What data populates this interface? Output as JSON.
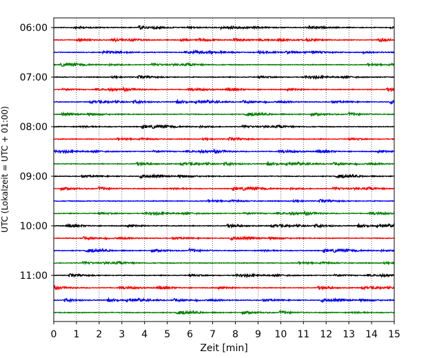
{
  "chart_data": {
    "type": "line",
    "title": "",
    "xlabel": "Zeit  [min]",
    "ylabel": "UTC (Lokalzeit = UTC + 01:00)",
    "xlim": [
      0,
      15
    ],
    "x_ticks": [
      "0",
      "1",
      "2",
      "3",
      "4",
      "5",
      "6",
      "7",
      "8",
      "9",
      "10",
      "11",
      "12",
      "13",
      "14",
      "15"
    ],
    "y_ticks": [
      "06:00",
      "07:00",
      "08:00",
      "09:00",
      "10:00",
      "11:00"
    ],
    "vertical_grid": "dotted at each minute",
    "trace_start": "06:00",
    "trace_interval_minutes": 15,
    "trace_count": 24,
    "trace_colors": [
      "#000000",
      "#ff0000",
      "#0000ff",
      "#008000"
    ]
  }
}
